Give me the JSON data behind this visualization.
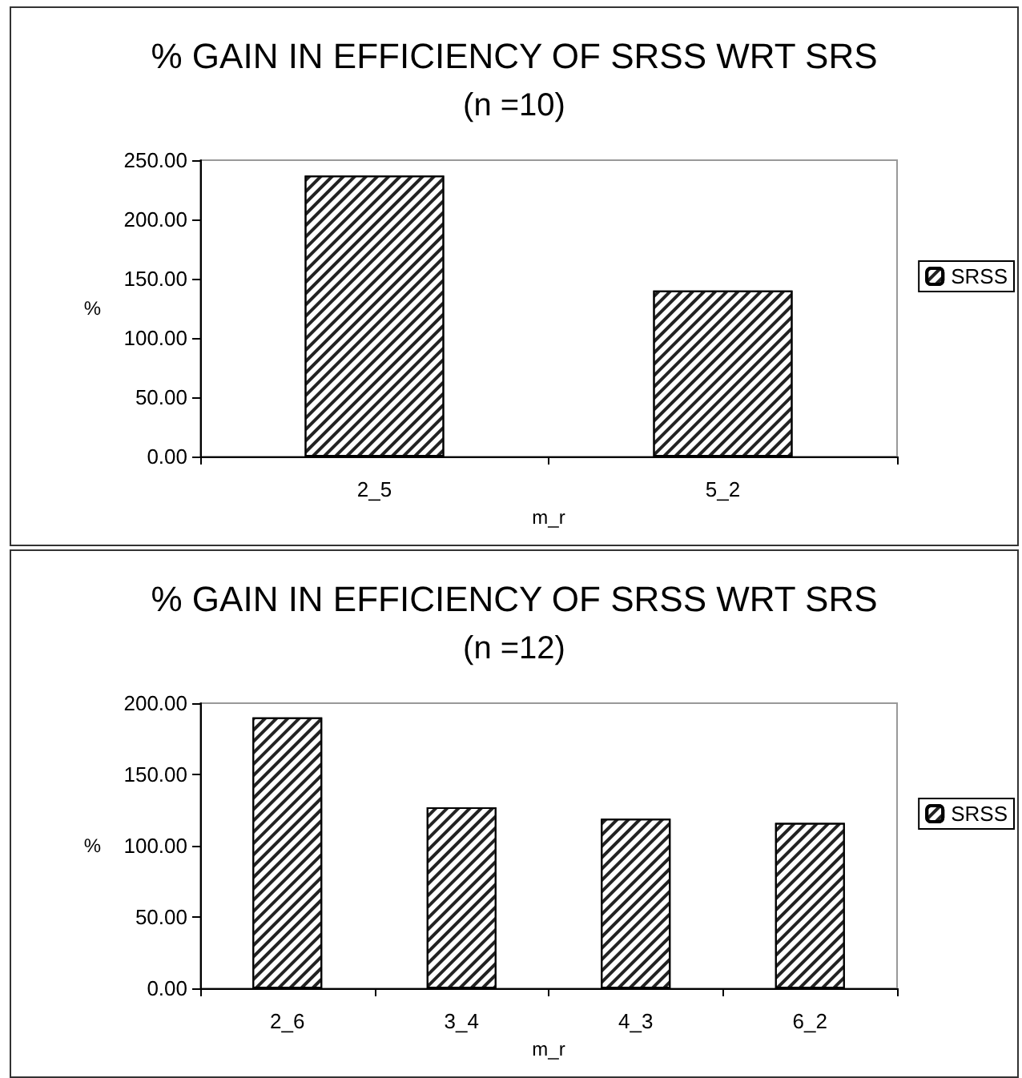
{
  "chart_data": [
    {
      "type": "bar",
      "title": "% GAIN IN EFFICIENCY OF SRSS WRT SRS",
      "subtitle": "(n =10)",
      "xlabel": "m_r",
      "ylabel": "%",
      "categories": [
        "2_5",
        "5_2"
      ],
      "series": [
        {
          "name": "SRSS",
          "color": "#ffffff",
          "values": [
            237,
            140
          ]
        }
      ],
      "ylim": [
        0,
        250
      ],
      "yticks": [
        {
          "value": 0,
          "label": "0.00"
        },
        {
          "value": 50,
          "label": "50.00"
        },
        {
          "value": 100,
          "label": "100.00"
        },
        {
          "value": 150,
          "label": "150.00"
        },
        {
          "value": 200,
          "label": "200.00"
        },
        {
          "value": 250,
          "label": "250.00"
        }
      ],
      "grid": false,
      "legend": "right"
    },
    {
      "type": "bar",
      "title": "% GAIN IN EFFICIENCY OF SRSS WRT SRS",
      "subtitle": "(n =12)",
      "xlabel": "m_r",
      "ylabel": "%",
      "categories": [
        "2_6",
        "3_4",
        "4_3",
        "6_2"
      ],
      "series": [
        {
          "name": "SRSS",
          "color": "#ffffff",
          "values": [
            190,
            127,
            119,
            116
          ]
        }
      ],
      "ylim": [
        0,
        200
      ],
      "yticks": [
        {
          "value": 0,
          "label": "0.00"
        },
        {
          "value": 50,
          "label": "50.00"
        },
        {
          "value": 100,
          "label": "100.00"
        },
        {
          "value": 150,
          "label": "150.00"
        },
        {
          "value": 200,
          "label": "200.00"
        }
      ],
      "grid": false,
      "legend": "right"
    }
  ]
}
